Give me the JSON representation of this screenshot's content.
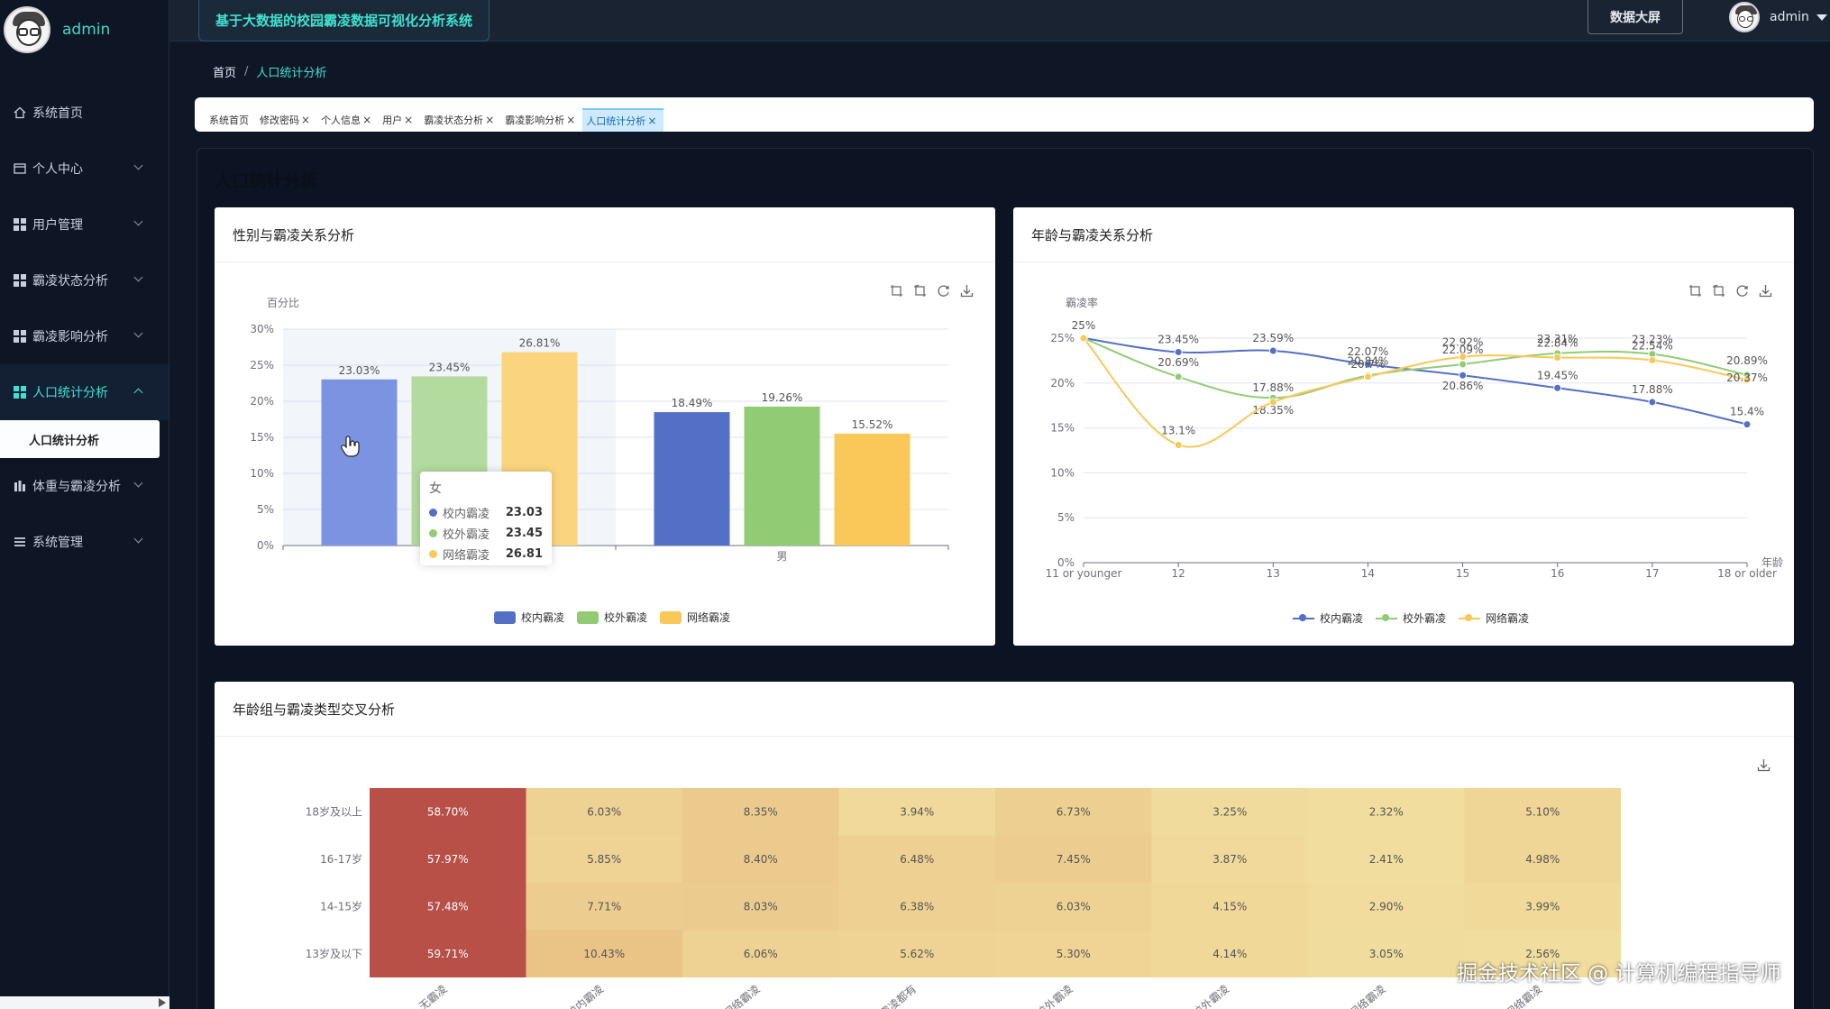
{
  "app": {
    "user": "admin",
    "system_title": "基于大数据的校园霸凌数据可视化分析系统",
    "screen_button": "数据大屏"
  },
  "sidebar": {
    "items": [
      {
        "label": "系统首页",
        "icon": "home-icon"
      },
      {
        "label": "个人中心",
        "icon": "id-card-icon"
      },
      {
        "label": "用户管理",
        "icon": "grid-icon"
      },
      {
        "label": "霸凌状态分析",
        "icon": "grid-icon"
      },
      {
        "label": "霸凌影响分析",
        "icon": "grid-icon"
      },
      {
        "label": "人口统计分析",
        "icon": "grid-icon",
        "active": true
      },
      {
        "label": "体重与霸凌分析",
        "icon": "bar-chart-icon"
      },
      {
        "label": "系统管理",
        "icon": "list-icon"
      }
    ],
    "sub_item": "人口统计分析"
  },
  "breadcrumb": {
    "home": "首页",
    "separator": "/",
    "current": "人口统计分析"
  },
  "tabs": [
    {
      "label": "系统首页",
      "closable": false
    },
    {
      "label": "修改密码",
      "closable": true
    },
    {
      "label": "个人信息",
      "closable": true
    },
    {
      "label": "用户",
      "closable": true
    },
    {
      "label": "霸凌状态分析",
      "closable": true
    },
    {
      "label": "霸凌影响分析",
      "closable": true
    },
    {
      "label": "人口统计分析",
      "closable": true,
      "active": true
    }
  ],
  "page_title": "人口统计分析",
  "colors": {
    "series1": "#5470c6",
    "series2": "#91cc75",
    "series3": "#fac858",
    "accent": "#3fe0cf"
  },
  "chart_data": [
    {
      "type": "bar",
      "title": "性别与霸凌关系分析",
      "ylabel": "百分比",
      "categories": [
        "女",
        "男"
      ],
      "ylim": [
        0,
        30
      ],
      "yticks": [
        "0%",
        "5%",
        "10%",
        "15%",
        "20%",
        "25%",
        "30%"
      ],
      "series": [
        {
          "name": "校内霸凌",
          "values": [
            23.03,
            18.49
          ],
          "labels": [
            "23.03%",
            "18.49%"
          ]
        },
        {
          "name": "校外霸凌",
          "values": [
            23.45,
            19.26
          ],
          "labels": [
            "23.45%",
            "19.26%"
          ]
        },
        {
          "name": "网络霸凌",
          "values": [
            26.81,
            15.52
          ],
          "labels": [
            "26.81%",
            "15.52%"
          ]
        }
      ],
      "legend": "bottom-center",
      "grid": true,
      "tooltip": {
        "title": "女",
        "rows": [
          {
            "name": "校内霸凌",
            "value": "23.03"
          },
          {
            "name": "校外霸凌",
            "value": "23.45"
          },
          {
            "name": "网络霸凌",
            "value": "26.81"
          }
        ]
      }
    },
    {
      "type": "line",
      "title": "年龄与霸凌关系分析",
      "ylabel": "霸凌率",
      "xlabel": "年龄",
      "categories": [
        "11 or younger",
        "12",
        "13",
        "14",
        "15",
        "16",
        "17",
        "18 or older"
      ],
      "ylim": [
        0,
        25
      ],
      "yticks": [
        "0%",
        "5%",
        "10%",
        "15%",
        "20%",
        "25%"
      ],
      "series": [
        {
          "name": "校内霸凌",
          "values": [
            25,
            23.45,
            23.59,
            22.07,
            20.86,
            19.45,
            17.88,
            15.4
          ],
          "labels": [
            "25%",
            "23.45%",
            "23.59%",
            "22.07%",
            "20.86%",
            "19.45%",
            "17.88%",
            "15.4%"
          ]
        },
        {
          "name": "校外霸凌",
          "values": [
            25,
            20.69,
            18.35,
            20.84,
            22.09,
            23.31,
            23.23,
            20.89
          ],
          "labels": [
            "25%",
            "20.69%",
            "18.35%",
            "20.84%",
            "22.09%",
            "23.31%",
            "23.23%",
            "20.89%"
          ]
        },
        {
          "name": "网络霸凌",
          "values": [
            25,
            13.1,
            17.88,
            20.7,
            22.92,
            22.84,
            22.54,
            20.37
          ],
          "labels": [
            "25%",
            "13.1%",
            "17.88%",
            "20.7%",
            "22.92%",
            "22.84%",
            "22.54%",
            "20.37%"
          ]
        }
      ],
      "legend": "bottom-center",
      "grid": true
    },
    {
      "type": "heatmap",
      "title": "年龄组与霸凌类型交叉分析",
      "rows": [
        "18岁及以上",
        "16-17岁",
        "14-15岁",
        "13岁及以下"
      ],
      "columns": [
        "无霸凌",
        "仅校内霸凌",
        "仅网络霸凌",
        "三种霸凌都有",
        "校内+校外霸凌",
        "仅校外霸凌",
        "校外+网络霸凌",
        "校内+网络霸凌"
      ],
      "values": [
        [
          58.7,
          6.03,
          8.35,
          3.94,
          6.73,
          3.25,
          2.32,
          5.1
        ],
        [
          57.97,
          5.85,
          8.4,
          6.48,
          7.45,
          3.87,
          2.41,
          4.98
        ],
        [
          57.48,
          7.71,
          8.03,
          6.38,
          6.03,
          4.15,
          2.9,
          3.99
        ],
        [
          59.71,
          10.43,
          6.06,
          5.62,
          5.3,
          4.14,
          3.05,
          2.56
        ]
      ],
      "labels": [
        [
          "58.70%",
          "6.03%",
          "8.35%",
          "3.94%",
          "6.73%",
          "3.25%",
          "2.32%",
          "5.10%"
        ],
        [
          "57.97%",
          "5.85%",
          "8.40%",
          "6.48%",
          "7.45%",
          "3.87%",
          "2.41%",
          "4.98%"
        ],
        [
          "57.48%",
          "7.71%",
          "8.03%",
          "6.38%",
          "6.03%",
          "4.15%",
          "2.90%",
          "3.99%"
        ],
        [
          "59.71%",
          "10.43%",
          "6.06%",
          "5.62%",
          "5.30%",
          "4.14%",
          "3.05%",
          "2.56%"
        ]
      ]
    }
  ],
  "watermark": "掘金技术社区 @ 计算机编程指导师"
}
